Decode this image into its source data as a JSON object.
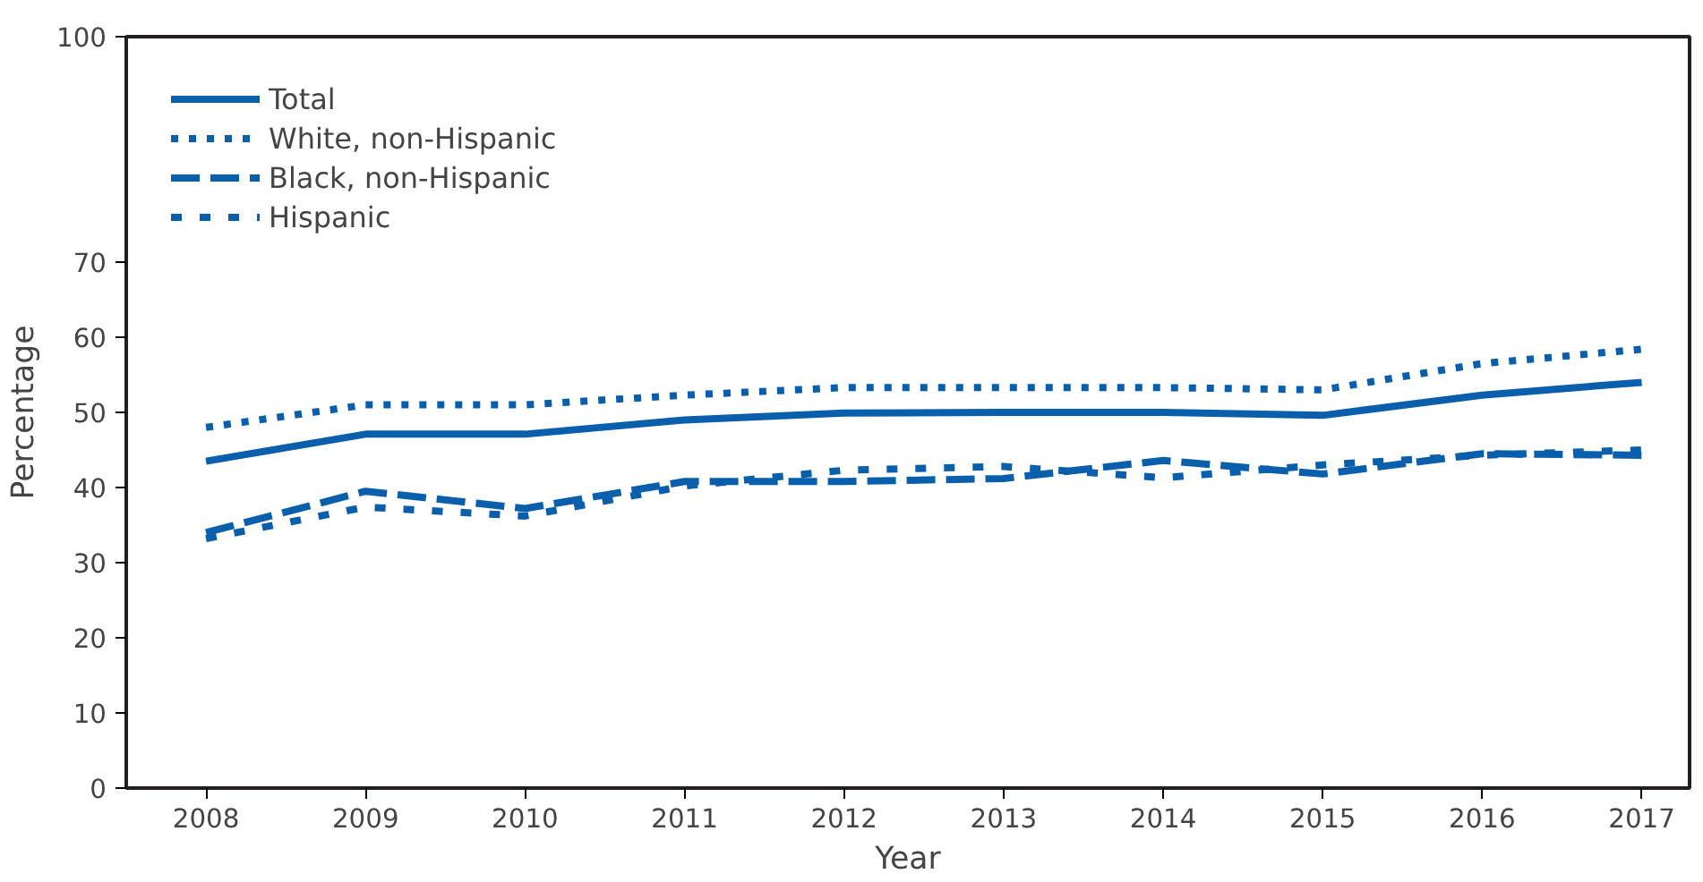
{
  "chart_data": {
    "type": "line",
    "xlabel": "Year",
    "ylabel": "Percentage",
    "x": [
      2008,
      2009,
      2010,
      2011,
      2012,
      2013,
      2014,
      2015,
      2016,
      2017
    ],
    "xlim": [
      2007.5,
      2017.3
    ],
    "xticks": [
      2008,
      2009,
      2010,
      2011,
      2012,
      2013,
      2014,
      2015,
      2016,
      2017
    ],
    "ylim": [
      0,
      100
    ],
    "yticks": [
      0,
      10,
      20,
      30,
      40,
      50,
      60,
      70,
      100
    ],
    "grid": false,
    "legend": "top left",
    "marker": "none",
    "series": [
      {
        "name": "Total",
        "color": "#0a5fad",
        "line_style": "solid",
        "values": [
          43.5,
          47.1,
          47.1,
          49,
          49.9,
          50,
          50,
          49.6,
          52.3,
          54
        ]
      },
      {
        "name": "White, non-Hispanic",
        "color": "#0a5fad",
        "line_style": "dotted",
        "values": [
          48,
          51,
          51,
          52.3,
          53.3,
          53.3,
          53.3,
          53,
          56.5,
          58.4
        ]
      },
      {
        "name": "Black, non-Hispanic",
        "color": "#0a5fad",
        "line_style": "dashed",
        "values": [
          34,
          39.5,
          37.2,
          40.8,
          40.8,
          41.2,
          43.6,
          41.8,
          44.5,
          44.3
        ]
      },
      {
        "name": "Hispanic",
        "color": "#0a5fad",
        "line_style": "dashed",
        "values": [
          33.2,
          37.4,
          36.2,
          40.2,
          42.3,
          42.8,
          41.3,
          43,
          44.3,
          45
        ]
      }
    ]
  }
}
